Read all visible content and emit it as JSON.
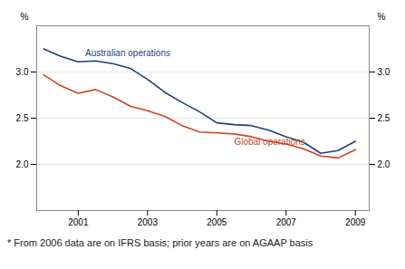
{
  "chart_data": {
    "type": "line",
    "x": [
      2000,
      2000.5,
      2001,
      2001.5,
      2002,
      2002.5,
      2003,
      2003.5,
      2004,
      2004.5,
      2005,
      2005.5,
      2006,
      2006.5,
      2007,
      2007.5,
      2008,
      2008.5,
      2009
    ],
    "series": [
      {
        "name": "Australian operations",
        "color": "#1f3f7a",
        "values": [
          3.25,
          3.17,
          3.11,
          3.12,
          3.09,
          3.04,
          2.92,
          2.78,
          2.67,
          2.57,
          2.45,
          2.43,
          2.42,
          2.37,
          2.3,
          2.24,
          2.12,
          2.15,
          2.25
        ]
      },
      {
        "name": "Global operations",
        "color": "#cc4422",
        "values": [
          2.97,
          2.85,
          2.77,
          2.81,
          2.73,
          2.63,
          2.58,
          2.52,
          2.42,
          2.35,
          2.34,
          2.33,
          2.3,
          2.25,
          2.22,
          2.17,
          2.09,
          2.07,
          2.16
        ]
      }
    ],
    "annotations": [
      {
        "text": "Australian operations",
        "x": 2001.2,
        "y": 3.17,
        "color": "#1f3f7a"
      },
      {
        "text": "Global operations",
        "x": 2005.5,
        "y": 2.21,
        "color": "#cc4422"
      }
    ],
    "xlim": [
      1999.8,
      2009.4
    ],
    "xticks": [
      2001,
      2003,
      2005,
      2007,
      2009
    ],
    "ylim": [
      1.5,
      3.5
    ],
    "yticks": [
      {
        "value": 2.0,
        "label": "2.0"
      },
      {
        "value": 2.5,
        "label": "2.5"
      },
      {
        "value": 3.0,
        "label": "3.0"
      }
    ],
    "ylabel": "%",
    "y2lim": [
      1.5,
      3.5
    ],
    "y2ticks": [
      {
        "value": 2.0,
        "label": "2.0"
      },
      {
        "value": 2.5,
        "label": "2.5"
      },
      {
        "value": 3.0,
        "label": "3.0"
      }
    ],
    "y2label": "%",
    "footnote": "* From 2006 data are on IFRS basis; prior years are on AGAAP basis",
    "grid": true
  }
}
